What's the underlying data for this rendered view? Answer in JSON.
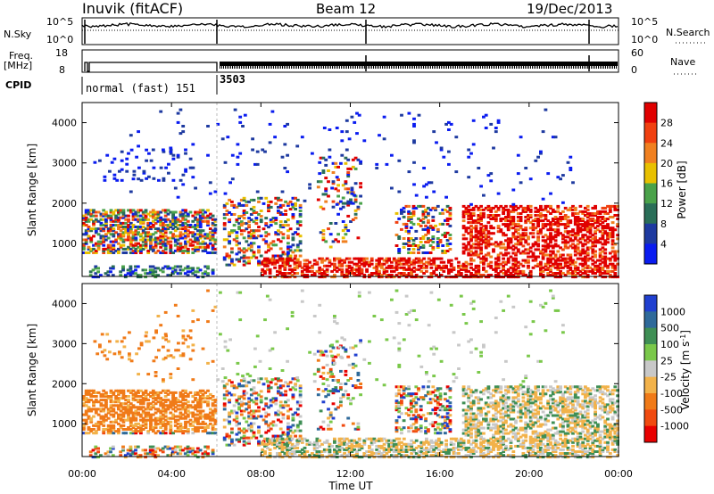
{
  "chart_data": [
    {
      "type": "line",
      "panel": "noise",
      "title": "Inuvik (fitACF)",
      "beam_label": "Beam 12",
      "date_label": "19/Dec/2013",
      "left_label": "N.Sky",
      "right_label": "N.Search",
      "yscale": "log",
      "y_ticks_left": [
        "10^5",
        "10^0"
      ],
      "y_ticks_right": [
        "10^5",
        "10^0"
      ],
      "description_level": "noise near 10^5 with brief gaps near 00:00 and 06:00"
    },
    {
      "type": "line",
      "panel": "frequency",
      "left_label": "Freq.",
      "left_unit": "[MHz]",
      "right_label": "Nave",
      "y_ticks_left": [
        "18",
        "8"
      ],
      "y_ticks_right": [
        "60",
        "0"
      ],
      "cpid_label": "CPID",
      "cpid_segments": [
        {
          "label": "normal (fast) 151",
          "start_hour": 0,
          "end_hour": 6
        },
        {
          "label": "3503",
          "start_hour": 6,
          "end_hour": 24
        }
      ]
    },
    {
      "type": "heatmap",
      "panel": "power",
      "ylabel": "Slant Range [km]",
      "xlabel": "Time UT",
      "yticks": [
        "1000",
        "2000",
        "3000",
        "4000"
      ],
      "ylim": [
        180,
        4500
      ],
      "xlim_hours": [
        0,
        24
      ],
      "colorbar_label": "Power [dB]",
      "colorbar_ticks": [
        "4",
        "8",
        "12",
        "16",
        "20",
        "24",
        "28"
      ],
      "colorbar_colors": [
        "#0a1cf0",
        "#1e3aa0",
        "#2a6e58",
        "#4aa24a",
        "#e8c000",
        "#f08020",
        "#f04010",
        "#e00000"
      ],
      "value_range": [
        0,
        30
      ]
    },
    {
      "type": "heatmap",
      "panel": "velocity",
      "ylabel": "Slant Range [km]",
      "xlabel": "Time UT",
      "yticks": [
        "1000",
        "2000",
        "3000",
        "4000"
      ],
      "ylim": [
        180,
        4500
      ],
      "xlim_hours": [
        0,
        24
      ],
      "xticks": [
        "00:00",
        "04:00",
        "08:00",
        "12:00",
        "16:00",
        "20:00",
        "00:00"
      ],
      "colorbar_label": "Velocity [m s",
      "colorbar_label_sup": "-1",
      "colorbar_label_end": "]",
      "colorbar_ticks": [
        "1000",
        "500",
        "100",
        "25",
        "-25",
        "-100",
        "-500",
        "-1000"
      ],
      "colorbar_colors": [
        "#2040d0",
        "#2f6a9a",
        "#3f8f55",
        "#7ac84a",
        "#c8c8c8",
        "#f2b24a",
        "#f07a18",
        "#f04a10",
        "#e80000"
      ],
      "value_range": [
        -1000,
        1000
      ]
    }
  ]
}
